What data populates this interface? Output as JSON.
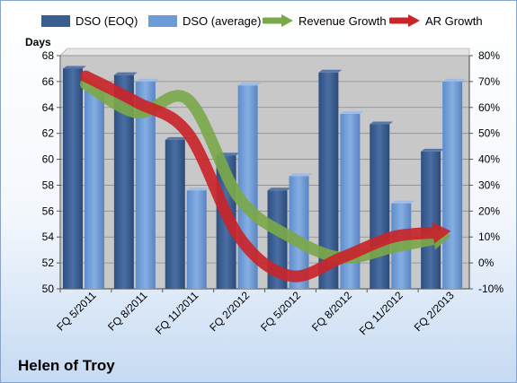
{
  "chart_data": {
    "type": "bar",
    "title": "",
    "ylabel": "Days",
    "ylim": [
      50,
      68
    ],
    "y_ticks": [
      "50",
      "52",
      "54",
      "56",
      "58",
      "60",
      "62",
      "64",
      "66",
      "68"
    ],
    "y2lim": [
      -10,
      80
    ],
    "y2_ticks": [
      "-10%",
      "0%",
      "10%",
      "20%",
      "30%",
      "40%",
      "50%",
      "60%",
      "70%",
      "80%"
    ],
    "categories": [
      "FQ 5/2011",
      "FQ 8/2011",
      "FQ 11/2011",
      "FQ 2/2012",
      "FQ 5/2012",
      "FQ 8/2012",
      "FQ 11/2012",
      "FQ 2/2013"
    ],
    "series": [
      {
        "name": "DSO (EOQ)",
        "type": "bar",
        "axis": "left",
        "color": "#3b5e91",
        "values": [
          67.0,
          66.5,
          61.5,
          60.3,
          57.6,
          66.7,
          62.7,
          60.6
        ]
      },
      {
        "name": "DSO (average)",
        "type": "bar",
        "axis": "left",
        "color": "#6c9bd8",
        "values": [
          65.3,
          66.0,
          57.6,
          65.7,
          58.7,
          63.5,
          56.6,
          66.0
        ]
      },
      {
        "name": "Revenue Growth",
        "type": "arrow-line",
        "axis": "right",
        "color": "#7ba84a",
        "values": [
          69,
          58,
          63,
          25,
          10,
          2,
          6,
          10
        ]
      },
      {
        "name": "AR Growth",
        "type": "arrow-line",
        "axis": "right",
        "color": "#c9252a",
        "values": [
          72,
          62,
          50,
          10,
          -5,
          2,
          10,
          12
        ]
      }
    ],
    "legend": "top",
    "grid": true,
    "plot_background": "#c8c8c8"
  },
  "company": "Helen of Troy"
}
